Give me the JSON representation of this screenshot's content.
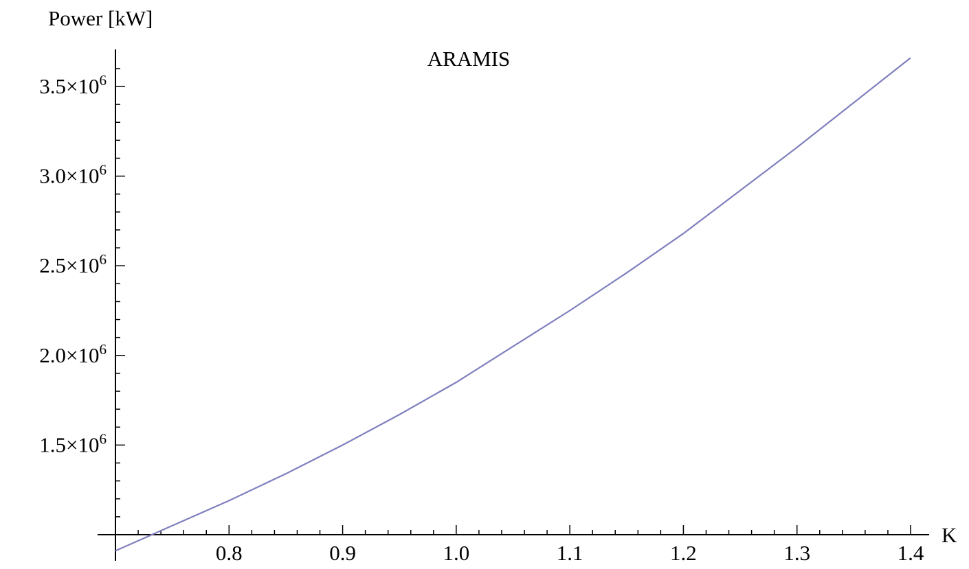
{
  "chart_data": {
    "type": "line",
    "title": "ARAMIS",
    "xlabel": "K",
    "ylabel": "Power [kW]",
    "xlim": [
      0.7,
      1.4
    ],
    "ylim": [
      1000000,
      3650000
    ],
    "x_ticks": [
      {
        "value": 0.8,
        "label": "0.8"
      },
      {
        "value": 0.9,
        "label": "0.9"
      },
      {
        "value": 1.0,
        "label": "1.0"
      },
      {
        "value": 1.1,
        "label": "1.1"
      },
      {
        "value": 1.2,
        "label": "1.2"
      },
      {
        "value": 1.3,
        "label": "1.3"
      },
      {
        "value": 1.4,
        "label": "1.4"
      }
    ],
    "y_ticks": [
      {
        "value": 1500000,
        "mantissa": "1.5",
        "times": "×10",
        "exp": "6"
      },
      {
        "value": 2000000,
        "mantissa": "2.0",
        "times": "×10",
        "exp": "6"
      },
      {
        "value": 2500000,
        "mantissa": "2.5",
        "times": "×10",
        "exp": "6"
      },
      {
        "value": 3000000,
        "mantissa": "3.0",
        "times": "×10",
        "exp": "6"
      },
      {
        "value": 3500000,
        "mantissa": "3.5",
        "times": "×10",
        "exp": "6"
      }
    ],
    "series": [
      {
        "color": "#7f7fbf",
        "x": [
          0.7,
          0.75,
          0.8,
          0.85,
          0.9,
          0.95,
          1.0,
          1.05,
          1.1,
          1.15,
          1.2,
          1.25,
          1.3,
          1.35,
          1.4
        ],
        "y": [
          910000,
          1050000,
          1190000,
          1340000,
          1500000,
          1670000,
          1850000,
          2050000,
          2250000,
          2460000,
          2680000,
          2920000,
          3160000,
          3410000,
          3660000
        ]
      }
    ],
    "grid": false,
    "legend": "none"
  }
}
